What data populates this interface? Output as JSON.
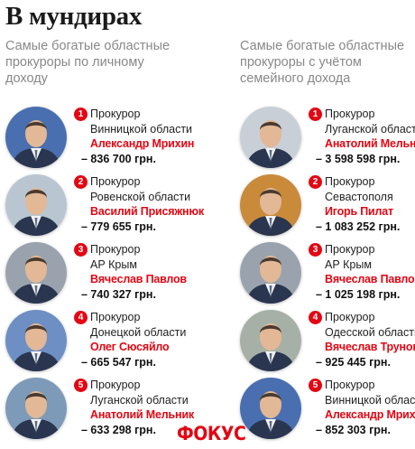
{
  "title": "В мундирах",
  "columns": [
    {
      "heading": "Самые богатые областные прокуроры по личному доходу",
      "entries": [
        {
          "rank": "1",
          "role": "Прокурор",
          "region": "Винницкой области",
          "name": "Александр Мрихин",
          "amount": "– 836 700 грн.",
          "bg": "#4a6fb0"
        },
        {
          "rank": "2",
          "role": "Прокурор",
          "region": "Ровенской области",
          "name": "Василий Присяжнюк",
          "amount": "– 779 655 грн.",
          "bg": "#b9c6d2"
        },
        {
          "rank": "3",
          "role": "Прокурор",
          "region": "АР Крым",
          "name": "Вячеслав Павлов",
          "amount": "– 740 327 грн.",
          "bg": "#9aa3ad"
        },
        {
          "rank": "4",
          "role": "Прокурор",
          "region": "Донецкой области",
          "name": "Олег Сюсяйло",
          "amount": "– 665 547 грн.",
          "bg": "#6d8fc4"
        },
        {
          "rank": "5",
          "role": "Прокурор",
          "region": "Луганской области",
          "name": "Анатолий Мельник",
          "amount": "– 633 298 грн.",
          "bg": "#7d9bb8"
        }
      ]
    },
    {
      "heading": "Самые богатые областные прокуроры с учётом семейного дохода",
      "entries": [
        {
          "rank": "1",
          "role": "Прокурор",
          "region": "Луганской области",
          "name": "Анатолий Мельник",
          "amount": "– 3 598 598 грн.",
          "bg": "#c9cfd6"
        },
        {
          "rank": "2",
          "role": "Прокурор",
          "region": "Севастополя",
          "name": "Игорь Пилат",
          "amount": "– 1 083 252 грн.",
          "bg": "#c98a3a"
        },
        {
          "rank": "3",
          "role": "Прокурор",
          "region": "АР Крым",
          "name": "Вячеслав Павлов",
          "amount": "– 1 025 198 грн.",
          "bg": "#9aa3ad"
        },
        {
          "rank": "4",
          "role": "Прокурор",
          "region": "Одесской области",
          "name": "Вячеслав Трунов",
          "amount": "– 925 445 грн.",
          "bg": "#a7b0a6"
        },
        {
          "rank": "5",
          "role": "Прокурор",
          "region": "Винницкой области",
          "name": "Александр Мрихин",
          "amount": "– 852 303 грн.",
          "bg": "#4a6fb0"
        }
      ]
    }
  ],
  "logo": "ФОКУС"
}
